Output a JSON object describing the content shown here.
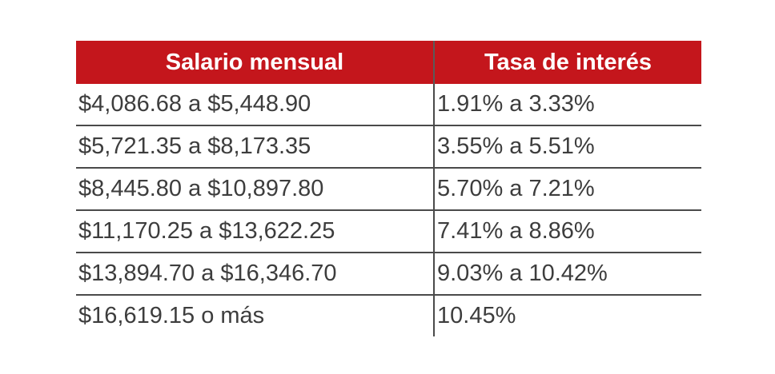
{
  "table": {
    "headers": [
      "Salario mensual",
      "Tasa de interés"
    ],
    "rows": [
      [
        "$4,086.68 a $5,448.90",
        "1.91% a 3.33%"
      ],
      [
        "$5,721.35 a $8,173.35",
        "3.55% a 5.51%"
      ],
      [
        "$8,445.80 a $10,897.80",
        "5.70% a 7.21%"
      ],
      [
        "$11,170.25 a $13,622.25",
        "7.41% a 8.86%"
      ],
      [
        "$13,894.70 a $16,346.70",
        "9.03% a 10.42%"
      ],
      [
        "$16,619.15 o más",
        "10.45%"
      ]
    ]
  },
  "colors": {
    "header_background": "#c4161c",
    "header_text": "#ffffff",
    "body_text": "#3d3d3d",
    "rule": "#4a4a4a"
  }
}
